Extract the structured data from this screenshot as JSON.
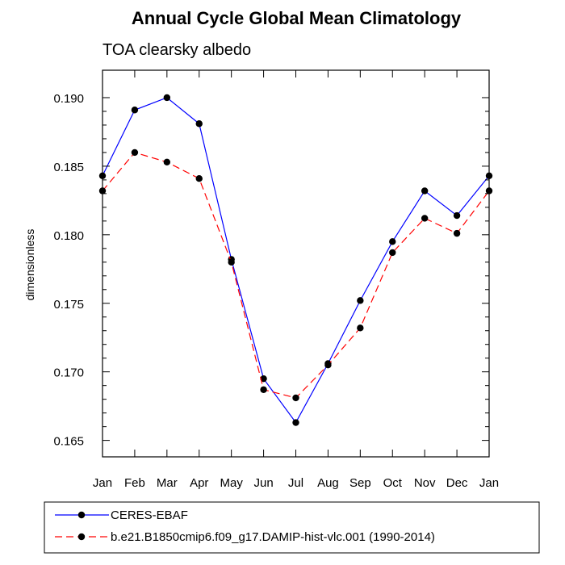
{
  "chart_data": {
    "type": "line",
    "title": "Annual Cycle Global Mean Climatology",
    "subtitle": "TOA clearsky albedo",
    "ylabel": "dimensionless",
    "xlabel": "",
    "categories": [
      "Jan",
      "Feb",
      "Mar",
      "Apr",
      "May",
      "Jun",
      "Jul",
      "Aug",
      "Sep",
      "Oct",
      "Nov",
      "Dec",
      "Jan"
    ],
    "ylim": [
      0.1638,
      0.192
    ],
    "yticks": [
      "0.165",
      "0.170",
      "0.175",
      "0.180",
      "0.185",
      "0.190"
    ],
    "ytick_values": [
      0.165,
      0.17,
      0.175,
      0.18,
      0.185,
      0.19
    ],
    "legend_position": "bottom",
    "series": [
      {
        "name": "CERES-EBAF",
        "color": "#0000ff",
        "dash": "solid",
        "values": [
          0.1843,
          0.1891,
          0.19,
          0.1881,
          0.1782,
          0.1695,
          0.1663,
          0.1706,
          0.1752,
          0.1795,
          0.1832,
          0.1814,
          0.1843
        ]
      },
      {
        "name": "b.e21.B1850cmip6.f09_g17.DAMIP-hist-vlc.001 (1990-2014)",
        "color": "#ff0000",
        "dash": "dashed",
        "values": [
          0.1832,
          0.186,
          0.1853,
          0.1841,
          0.178,
          0.1687,
          0.1681,
          0.1705,
          0.1732,
          0.1787,
          0.1812,
          0.1801,
          0.1832
        ]
      }
    ]
  }
}
